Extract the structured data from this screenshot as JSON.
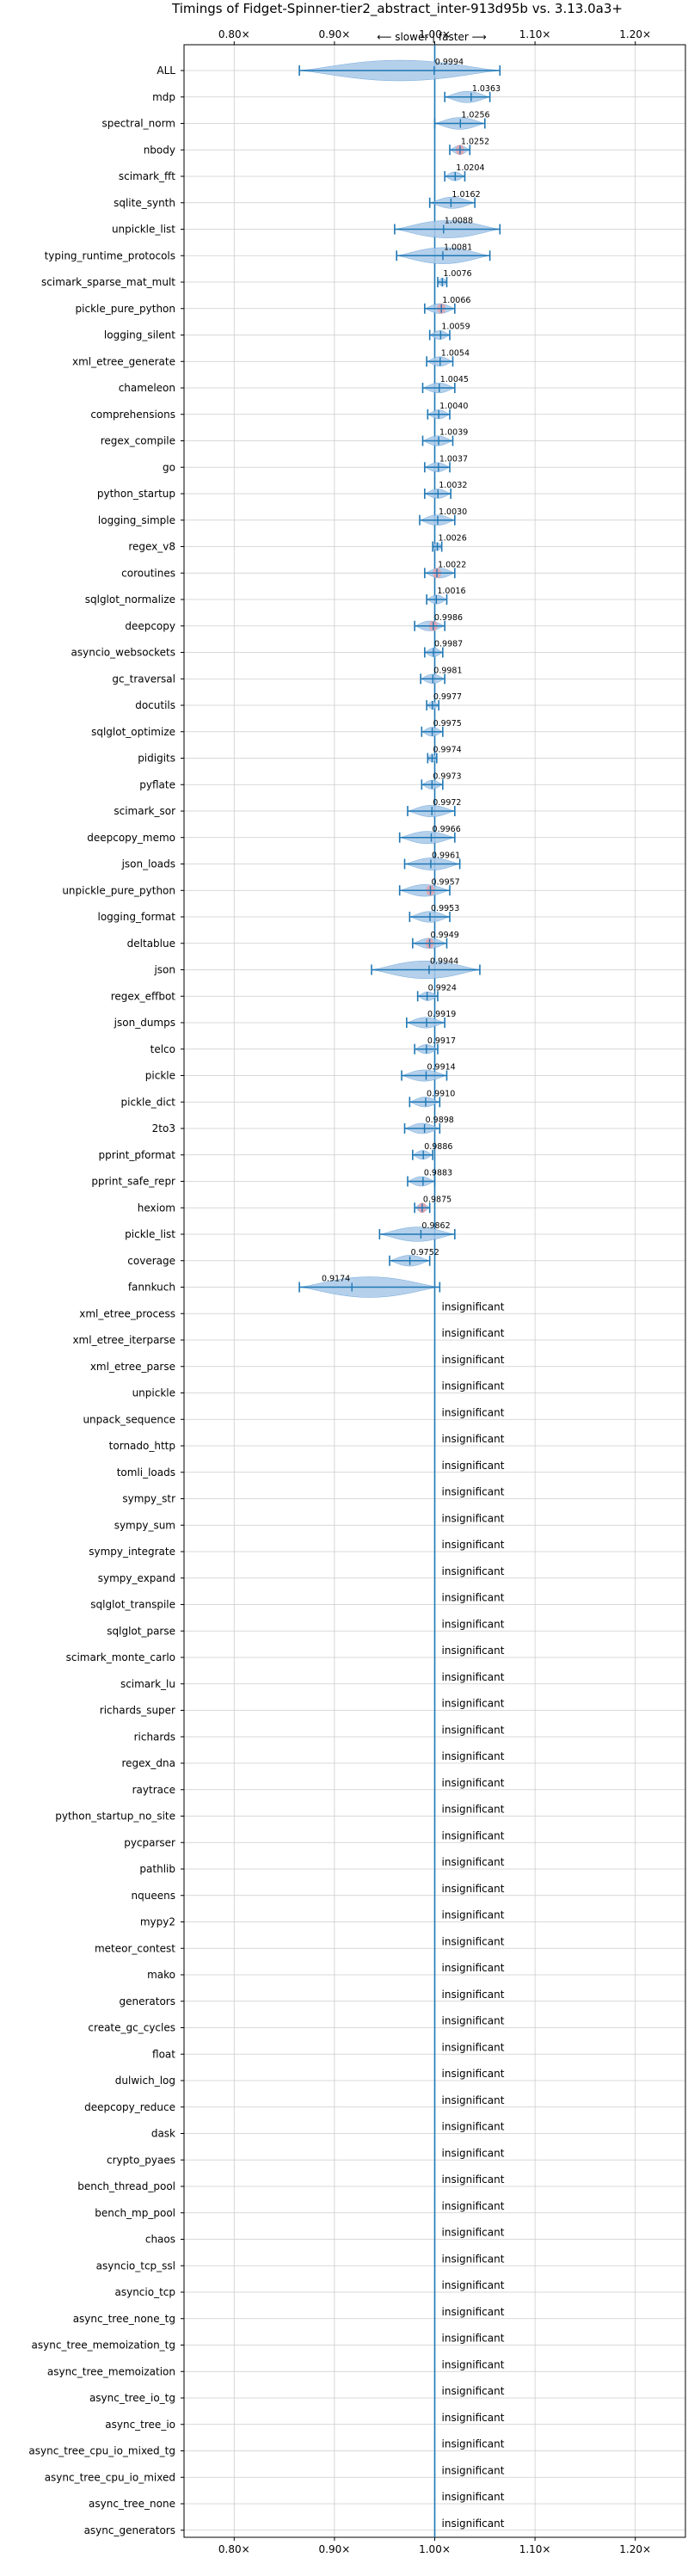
{
  "chart_data": {
    "type": "violin",
    "title": "Timings of Fidget-Spinner-tier2_abstract_inter-913d95b vs. 3.13.0a3+",
    "direction_label": "⟵ slower | faster ⟶",
    "xlim": [
      0.75,
      1.25
    ],
    "xticks": [
      0.8,
      0.9,
      1.0,
      1.1,
      1.2
    ],
    "xtick_labels": [
      "0.80×",
      "0.90×",
      "1.00×",
      "1.10×",
      "1.20×"
    ],
    "reference_line": 1.0,
    "grid": true,
    "colors": {
      "violin_fill": "#a8c8e8",
      "violin_edge": "#5a9ad6",
      "error_bar": "#1f77b4",
      "reference_line": "#1f77b4",
      "mean_marker": "#e8a0a8",
      "grid": "#cccccc"
    },
    "insignificant_label": "insignificant",
    "benchmarks": [
      {
        "name": "ALL",
        "value": 0.9994,
        "label": "0.9994",
        "min": 0.865,
        "max": 1.065
      },
      {
        "name": "mdp",
        "value": 1.0363,
        "label": "1.0363",
        "min": 1.01,
        "max": 1.055
      },
      {
        "name": "spectral_norm",
        "value": 1.0256,
        "label": "1.0256",
        "min": 1.0,
        "max": 1.05
      },
      {
        "name": "nbody",
        "value": 1.0252,
        "label": "1.0252",
        "min": 1.015,
        "max": 1.035
      },
      {
        "name": "scimark_fft",
        "value": 1.0204,
        "label": "1.0204",
        "min": 1.01,
        "max": 1.03
      },
      {
        "name": "sqlite_synth",
        "value": 1.0162,
        "label": "1.0162",
        "min": 0.995,
        "max": 1.04
      },
      {
        "name": "unpickle_list",
        "value": 1.0088,
        "label": "1.0088",
        "min": 0.96,
        "max": 1.065
      },
      {
        "name": "typing_runtime_protocols",
        "value": 1.0081,
        "label": "1.0081",
        "min": 0.962,
        "max": 1.055
      },
      {
        "name": "scimark_sparse_mat_mult",
        "value": 1.0076,
        "label": "1.0076",
        "min": 1.003,
        "max": 1.012
      },
      {
        "name": "pickle_pure_python",
        "value": 1.0066,
        "label": "1.0066",
        "min": 0.99,
        "max": 1.02
      },
      {
        "name": "logging_silent",
        "value": 1.0059,
        "label": "1.0059",
        "min": 0.995,
        "max": 1.015
      },
      {
        "name": "xml_etree_generate",
        "value": 1.0054,
        "label": "1.0054",
        "min": 0.992,
        "max": 1.018
      },
      {
        "name": "chameleon",
        "value": 1.0045,
        "label": "1.0045",
        "min": 0.988,
        "max": 1.02
      },
      {
        "name": "comprehensions",
        "value": 1.004,
        "label": "1.0040",
        "min": 0.993,
        "max": 1.015
      },
      {
        "name": "regex_compile",
        "value": 1.0039,
        "label": "1.0039",
        "min": 0.988,
        "max": 1.018
      },
      {
        "name": "go",
        "value": 1.0037,
        "label": "1.0037",
        "min": 0.99,
        "max": 1.015
      },
      {
        "name": "python_startup",
        "value": 1.0032,
        "label": "1.0032",
        "min": 0.99,
        "max": 1.016
      },
      {
        "name": "logging_simple",
        "value": 1.003,
        "label": "1.0030",
        "min": 0.985,
        "max": 1.02
      },
      {
        "name": "regex_v8",
        "value": 1.0026,
        "label": "1.0026",
        "min": 0.998,
        "max": 1.007
      },
      {
        "name": "coroutines",
        "value": 1.0022,
        "label": "1.0022",
        "min": 0.99,
        "max": 1.02
      },
      {
        "name": "sqlglot_normalize",
        "value": 1.0016,
        "label": "1.0016",
        "min": 0.992,
        "max": 1.012
      },
      {
        "name": "deepcopy",
        "value": 0.9986,
        "label": "0.9986",
        "min": 0.98,
        "max": 1.01
      },
      {
        "name": "asyncio_websockets",
        "value": 0.9987,
        "label": "0.9987",
        "min": 0.99,
        "max": 1.008
      },
      {
        "name": "gc_traversal",
        "value": 0.9981,
        "label": "0.9981",
        "min": 0.986,
        "max": 1.01
      },
      {
        "name": "docutils",
        "value": 0.9977,
        "label": "0.9977",
        "min": 0.992,
        "max": 1.004
      },
      {
        "name": "sqlglot_optimize",
        "value": 0.9975,
        "label": "0.9975",
        "min": 0.987,
        "max": 1.008
      },
      {
        "name": "pidigits",
        "value": 0.9974,
        "label": "0.9974",
        "min": 0.993,
        "max": 1.002
      },
      {
        "name": "pyflate",
        "value": 0.9973,
        "label": "0.9973",
        "min": 0.987,
        "max": 1.008
      },
      {
        "name": "scimark_sor",
        "value": 0.9972,
        "label": "0.9972",
        "min": 0.973,
        "max": 1.02
      },
      {
        "name": "deepcopy_memo",
        "value": 0.9966,
        "label": "0.9966",
        "min": 0.965,
        "max": 1.02
      },
      {
        "name": "json_loads",
        "value": 0.9961,
        "label": "0.9961",
        "min": 0.97,
        "max": 1.025
      },
      {
        "name": "unpickle_pure_python",
        "value": 0.9957,
        "label": "0.9957",
        "min": 0.965,
        "max": 1.015
      },
      {
        "name": "logging_format",
        "value": 0.9953,
        "label": "0.9953",
        "min": 0.975,
        "max": 1.015
      },
      {
        "name": "deltablue",
        "value": 0.9949,
        "label": "0.9949",
        "min": 0.978,
        "max": 1.012
      },
      {
        "name": "json",
        "value": 0.9944,
        "label": "0.9944",
        "min": 0.937,
        "max": 1.045
      },
      {
        "name": "regex_effbot",
        "value": 0.9924,
        "label": "0.9924",
        "min": 0.983,
        "max": 1.003
      },
      {
        "name": "json_dumps",
        "value": 0.9919,
        "label": "0.9919",
        "min": 0.972,
        "max": 1.01
      },
      {
        "name": "telco",
        "value": 0.9917,
        "label": "0.9917",
        "min": 0.98,
        "max": 1.003
      },
      {
        "name": "pickle",
        "value": 0.9914,
        "label": "0.9914",
        "min": 0.967,
        "max": 1.012
      },
      {
        "name": "pickle_dict",
        "value": 0.991,
        "label": "0.9910",
        "min": 0.975,
        "max": 1.005
      },
      {
        "name": "2to3",
        "value": 0.9898,
        "label": "0.9898",
        "min": 0.97,
        "max": 1.005
      },
      {
        "name": "pprint_pformat",
        "value": 0.9886,
        "label": "0.9886",
        "min": 0.978,
        "max": 0.998
      },
      {
        "name": "pprint_safe_repr",
        "value": 0.9883,
        "label": "0.9883",
        "min": 0.973,
        "max": 1.0
      },
      {
        "name": "hexiom",
        "value": 0.9875,
        "label": "0.9875",
        "min": 0.98,
        "max": 0.995
      },
      {
        "name": "pickle_list",
        "value": 0.9862,
        "label": "0.9862",
        "min": 0.945,
        "max": 1.02
      },
      {
        "name": "coverage",
        "value": 0.9752,
        "label": "0.9752",
        "min": 0.955,
        "max": 0.995
      },
      {
        "name": "fannkuch",
        "value": 0.9174,
        "label": "0.9174",
        "min": 0.865,
        "max": 1.005
      },
      {
        "name": "xml_etree_process",
        "insignificant": true
      },
      {
        "name": "xml_etree_iterparse",
        "insignificant": true
      },
      {
        "name": "xml_etree_parse",
        "insignificant": true
      },
      {
        "name": "unpickle",
        "insignificant": true
      },
      {
        "name": "unpack_sequence",
        "insignificant": true
      },
      {
        "name": "tornado_http",
        "insignificant": true
      },
      {
        "name": "tomli_loads",
        "insignificant": true
      },
      {
        "name": "sympy_str",
        "insignificant": true
      },
      {
        "name": "sympy_sum",
        "insignificant": true
      },
      {
        "name": "sympy_integrate",
        "insignificant": true
      },
      {
        "name": "sympy_expand",
        "insignificant": true
      },
      {
        "name": "sqlglot_transpile",
        "insignificant": true
      },
      {
        "name": "sqlglot_parse",
        "insignificant": true
      },
      {
        "name": "scimark_monte_carlo",
        "insignificant": true
      },
      {
        "name": "scimark_lu",
        "insignificant": true
      },
      {
        "name": "richards_super",
        "insignificant": true
      },
      {
        "name": "richards",
        "insignificant": true
      },
      {
        "name": "regex_dna",
        "insignificant": true
      },
      {
        "name": "raytrace",
        "insignificant": true
      },
      {
        "name": "python_startup_no_site",
        "insignificant": true
      },
      {
        "name": "pycparser",
        "insignificant": true
      },
      {
        "name": "pathlib",
        "insignificant": true
      },
      {
        "name": "nqueens",
        "insignificant": true
      },
      {
        "name": "mypy2",
        "insignificant": true
      },
      {
        "name": "meteor_contest",
        "insignificant": true
      },
      {
        "name": "mako",
        "insignificant": true
      },
      {
        "name": "generators",
        "insignificant": true
      },
      {
        "name": "create_gc_cycles",
        "insignificant": true
      },
      {
        "name": "float",
        "insignificant": true
      },
      {
        "name": "dulwich_log",
        "insignificant": true
      },
      {
        "name": "deepcopy_reduce",
        "insignificant": true
      },
      {
        "name": "dask",
        "insignificant": true
      },
      {
        "name": "crypto_pyaes",
        "insignificant": true
      },
      {
        "name": "bench_thread_pool",
        "insignificant": true
      },
      {
        "name": "bench_mp_pool",
        "insignificant": true
      },
      {
        "name": "chaos",
        "insignificant": true
      },
      {
        "name": "asyncio_tcp_ssl",
        "insignificant": true
      },
      {
        "name": "asyncio_tcp",
        "insignificant": true
      },
      {
        "name": "async_tree_none_tg",
        "insignificant": true
      },
      {
        "name": "async_tree_memoization_tg",
        "insignificant": true
      },
      {
        "name": "async_tree_memoization",
        "insignificant": true
      },
      {
        "name": "async_tree_io_tg",
        "insignificant": true
      },
      {
        "name": "async_tree_io",
        "insignificant": true
      },
      {
        "name": "async_tree_cpu_io_mixed_tg",
        "insignificant": true
      },
      {
        "name": "async_tree_cpu_io_mixed",
        "insignificant": true
      },
      {
        "name": "async_tree_none",
        "insignificant": true
      },
      {
        "name": "async_generators",
        "insignificant": true
      }
    ]
  }
}
